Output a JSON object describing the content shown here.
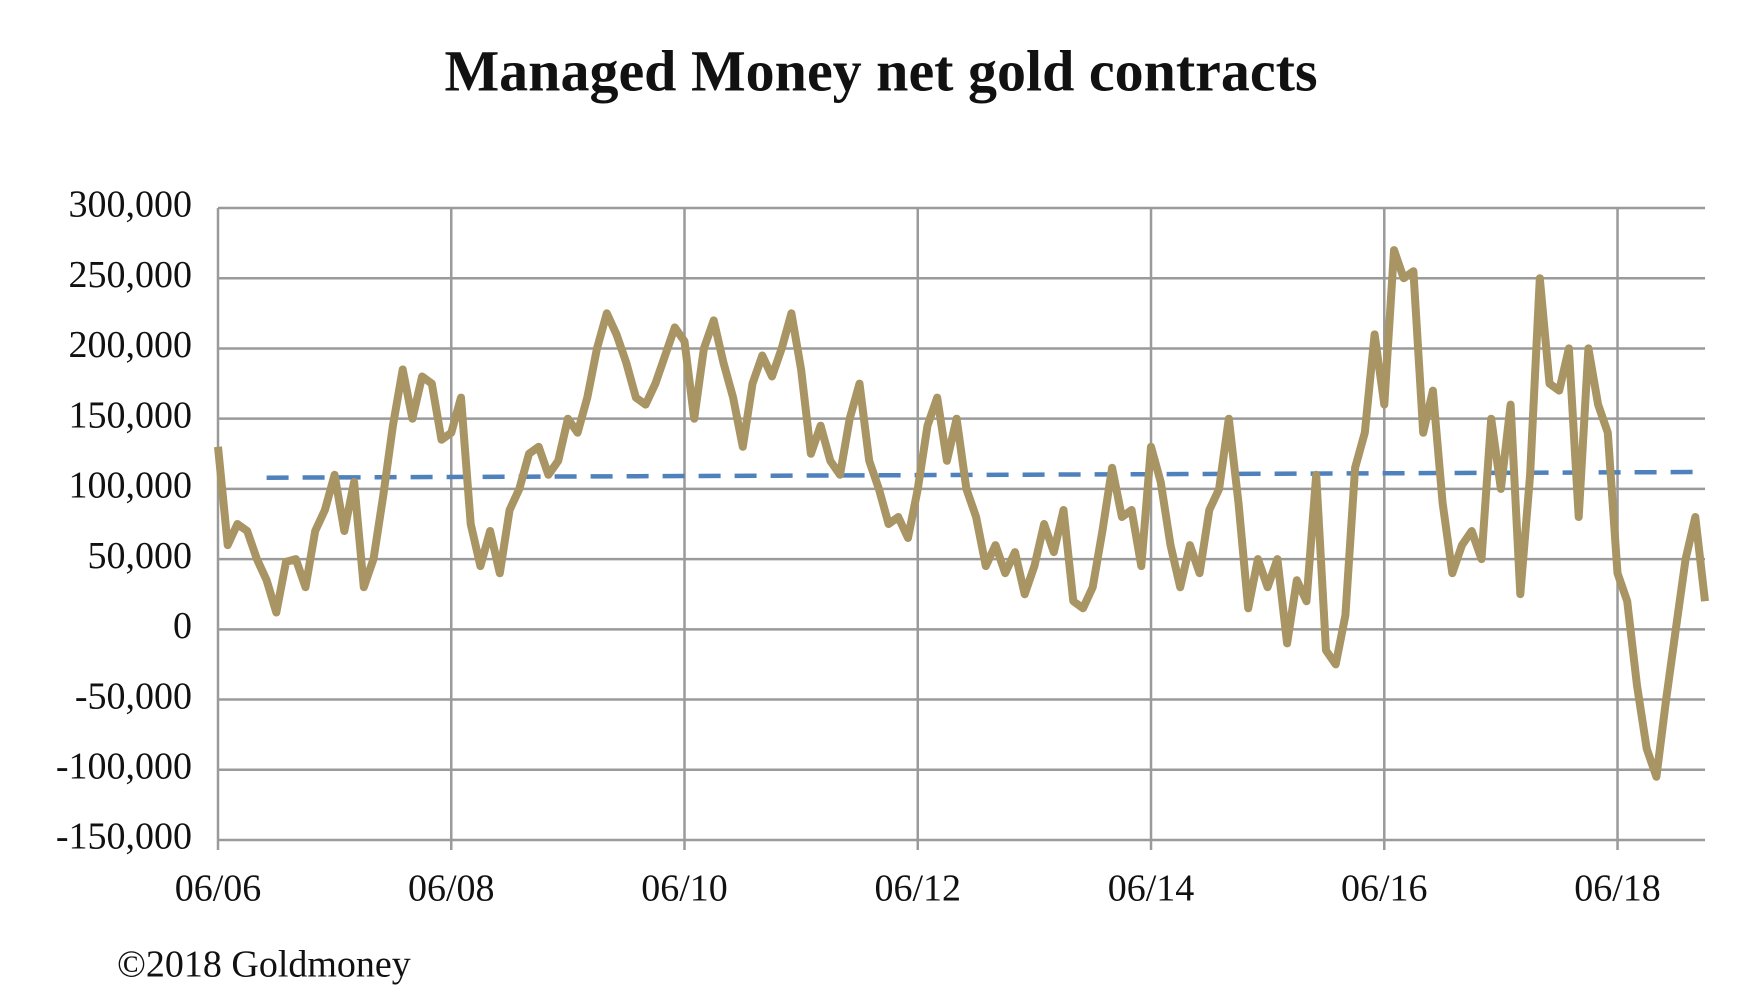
{
  "chart_data": {
    "type": "line",
    "title": "Managed Money net gold contracts",
    "source": "©2018 Goldmoney",
    "x": [
      "06/06",
      "07/06",
      "08/06",
      "09/06",
      "10/06",
      "11/06",
      "12/06",
      "01/07",
      "02/07",
      "03/07",
      "04/07",
      "05/07",
      "06/07",
      "07/07",
      "08/07",
      "09/07",
      "10/07",
      "11/07",
      "12/07",
      "01/08",
      "02/08",
      "03/08",
      "04/08",
      "05/08",
      "06/08",
      "07/08",
      "08/08",
      "09/08",
      "10/08",
      "11/08",
      "12/08",
      "01/09",
      "02/09",
      "03/09",
      "04/09",
      "05/09",
      "06/09",
      "07/09",
      "08/09",
      "09/09",
      "10/09",
      "11/09",
      "12/09",
      "01/10",
      "02/10",
      "03/10",
      "04/10",
      "05/10",
      "06/10",
      "07/10",
      "08/10",
      "09/10",
      "10/10",
      "11/10",
      "12/10",
      "01/11",
      "02/11",
      "03/11",
      "04/11",
      "05/11",
      "06/11",
      "07/11",
      "08/11",
      "09/11",
      "10/11",
      "11/11",
      "12/11",
      "01/12",
      "02/12",
      "03/12",
      "04/12",
      "05/12",
      "06/12",
      "07/12",
      "08/12",
      "09/12",
      "10/12",
      "11/12",
      "12/12",
      "01/13",
      "02/13",
      "03/13",
      "04/13",
      "05/13",
      "06/13",
      "07/13",
      "08/13",
      "09/13",
      "10/13",
      "11/13",
      "12/13",
      "01/14",
      "02/14",
      "03/14",
      "04/14",
      "05/14",
      "06/14",
      "07/14",
      "08/14",
      "09/14",
      "10/14",
      "11/14",
      "12/14",
      "01/15",
      "02/15",
      "03/15",
      "04/15",
      "05/15",
      "06/15",
      "07/15",
      "08/15",
      "09/15",
      "10/15",
      "11/15",
      "12/15",
      "01/16",
      "02/16",
      "03/16",
      "04/16",
      "05/16",
      "06/16",
      "07/16",
      "08/16",
      "09/16",
      "10/16",
      "11/16",
      "12/16",
      "01/17",
      "02/17",
      "03/17",
      "04/17",
      "05/17",
      "06/17",
      "07/17",
      "08/17",
      "09/17",
      "10/17",
      "11/17",
      "12/17",
      "01/18",
      "02/18",
      "03/18",
      "04/18",
      "05/18",
      "06/18",
      "07/18",
      "08/18",
      "09/18",
      "10/18",
      "11/18",
      "12/18",
      "01/19",
      "02/19",
      "03/19"
    ],
    "series": [
      {
        "color": "#a89563",
        "values": [
          130000,
          60000,
          75000,
          70000,
          50000,
          35000,
          12000,
          48000,
          50000,
          30000,
          70000,
          85000,
          110000,
          70000,
          105000,
          30000,
          50000,
          95000,
          145000,
          185000,
          150000,
          180000,
          175000,
          135000,
          140000,
          165000,
          75000,
          45000,
          70000,
          40000,
          85000,
          100000,
          125000,
          130000,
          110000,
          120000,
          150000,
          140000,
          165000,
          200000,
          225000,
          210000,
          190000,
          165000,
          160000,
          175000,
          195000,
          215000,
          205000,
          150000,
          200000,
          220000,
          190000,
          165000,
          130000,
          175000,
          195000,
          180000,
          200000,
          225000,
          185000,
          125000,
          145000,
          120000,
          110000,
          150000,
          175000,
          120000,
          100000,
          75000,
          80000,
          65000,
          100000,
          145000,
          165000,
          120000,
          150000,
          100000,
          80000,
          45000,
          60000,
          40000,
          55000,
          25000,
          45000,
          75000,
          55000,
          85000,
          20000,
          15000,
          30000,
          70000,
          115000,
          80000,
          85000,
          45000,
          130000,
          105000,
          60000,
          30000,
          60000,
          40000,
          85000,
          100000,
          150000,
          90000,
          15000,
          50000,
          30000,
          50000,
          -10000,
          35000,
          20000,
          110000,
          -15000,
          -25000,
          10000,
          115000,
          140000,
          210000,
          160000,
          270000,
          250000,
          255000,
          140000,
          170000,
          90000,
          40000,
          60000,
          70000,
          50000,
          150000,
          100000,
          160000,
          25000,
          110000,
          250000,
          175000,
          170000,
          200000,
          80000,
          200000,
          160000,
          140000,
          40000,
          20000,
          -40000,
          -85000,
          -105000,
          -50000,
          0,
          50000,
          80000,
          20000
        ]
      }
    ],
    "average": {
      "color": "#4f81bd",
      "dashed": true,
      "x": [
        "11/06",
        "03/19"
      ],
      "values": [
        108000,
        112000
      ]
    },
    "xlim": [
      "06/06",
      "03/19"
    ],
    "xticks": [
      "06/06",
      "06/08",
      "06/10",
      "06/12",
      "06/14",
      "06/16",
      "06/18"
    ],
    "ylim": [
      -150000,
      300000
    ],
    "yticks": [
      {
        "value": -150000,
        "label": "-150,000"
      },
      {
        "value": -100000,
        "label": "-100,000"
      },
      {
        "value": -50000,
        "label": "-50,000"
      },
      0,
      {
        "value": 50000,
        "label": "50,000"
      },
      {
        "value": 100000,
        "label": "100,000"
      },
      {
        "value": 150000,
        "label": "150,000"
      },
      {
        "value": 200000,
        "label": "200,000"
      },
      {
        "value": 250000,
        "label": "250,000"
      },
      {
        "value": 300000,
        "label": "300,000"
      }
    ],
    "grid": true
  }
}
